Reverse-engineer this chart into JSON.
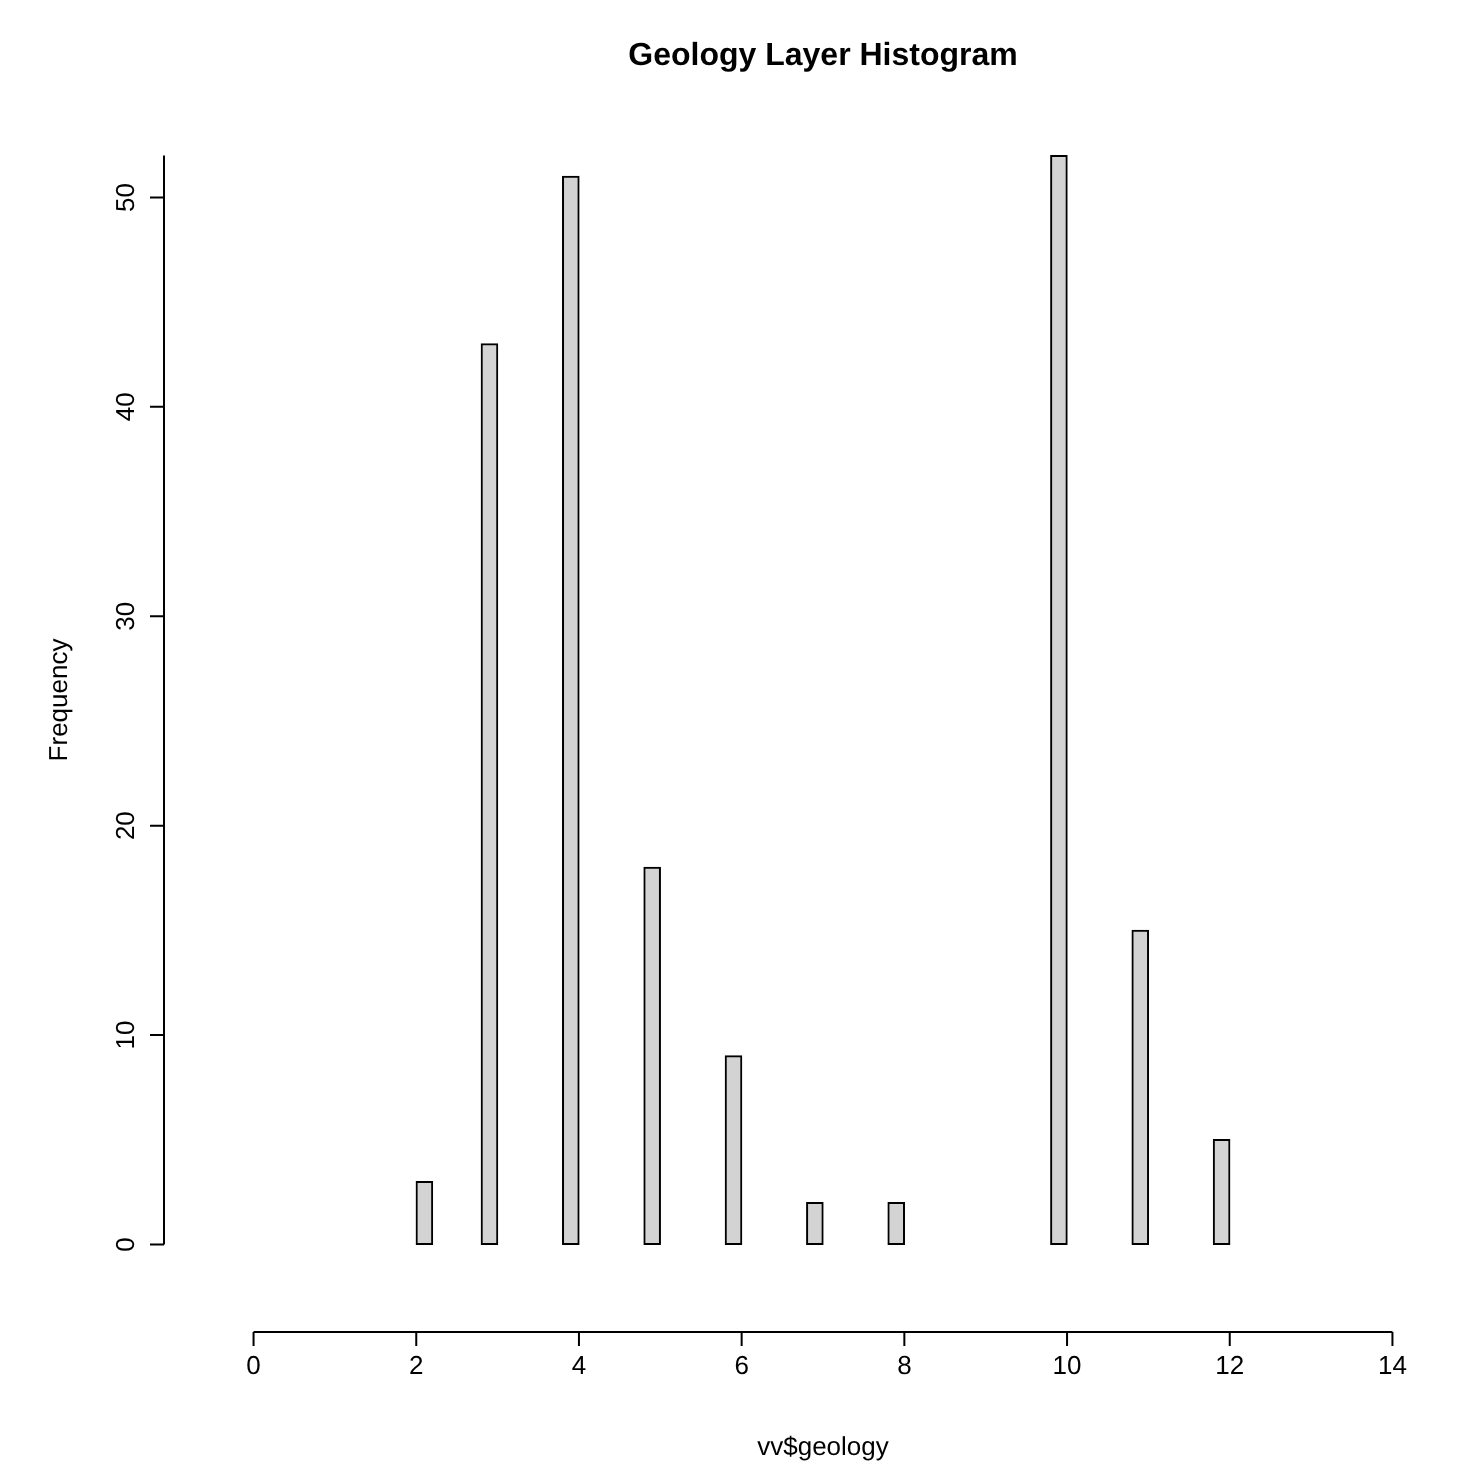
{
  "chart_data": {
    "type": "histogram",
    "title": "Geology Layer Histogram",
    "xlabel": "vv$geology",
    "ylabel": "Frequency",
    "bins": [
      2,
      2.2,
      2.4,
      2.6,
      2.8,
      3,
      3.2,
      3.4,
      3.6,
      3.8,
      4,
      4.2,
      4.4,
      4.6,
      4.8,
      5,
      5.2,
      5.4,
      5.6,
      5.8,
      6,
      6.2,
      6.4,
      6.6,
      6.8,
      7,
      7.2,
      7.4,
      7.6,
      7.8,
      8,
      8.2,
      8.4,
      8.6,
      8.8,
      9,
      9.2,
      9.4,
      9.6,
      9.8,
      10,
      10.2,
      10.4,
      10.6,
      10.8,
      11,
      11.2,
      11.4,
      11.6,
      11.8,
      12
    ],
    "values": [
      3,
      0,
      0,
      0,
      43,
      0,
      0,
      0,
      0,
      51,
      0,
      0,
      0,
      0,
      18,
      0,
      0,
      0,
      0,
      9,
      0,
      0,
      0,
      0,
      2,
      0,
      0,
      0,
      0,
      2,
      0,
      0,
      0,
      0,
      0,
      0,
      0,
      0,
      0,
      52,
      0,
      0,
      0,
      0,
      15,
      0,
      0,
      0,
      0,
      5
    ],
    "color": "#d3d3d3",
    "xlim": [
      0,
      14
    ],
    "xticks": [
      0,
      2,
      4,
      6,
      8,
      10,
      12,
      14
    ],
    "ylim": [
      0,
      52
    ],
    "yticks": [
      0,
      10,
      20,
      30,
      40,
      50
    ]
  }
}
